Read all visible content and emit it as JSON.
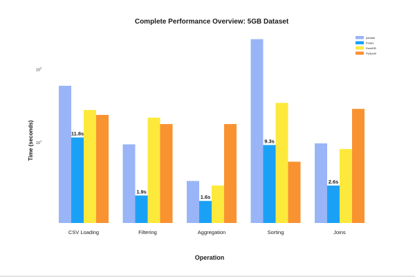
{
  "chart_data": {
    "type": "bar",
    "title": "Complete Performance Overview: 5GB Dataset",
    "xlabel": "Operation",
    "ylabel": "Time (seconds)",
    "yscale": "log",
    "ylim": [
      0.8,
      300
    ],
    "yticks": [
      {
        "value": 10,
        "base": "10",
        "exp": "1"
      },
      {
        "value": 100,
        "base": "10",
        "exp": "2"
      }
    ],
    "categories": [
      "CSV Loading",
      "Filtering",
      "Aggregation",
      "Sorting",
      "Joins"
    ],
    "series": [
      {
        "name": "pandas",
        "color": "#99b5f7",
        "values": [
          60,
          9.5,
          3.0,
          260,
          9.8
        ]
      },
      {
        "name": "Polars",
        "color": "#1aa1f6",
        "values": [
          11.8,
          1.9,
          1.6,
          9.3,
          2.6
        ]
      },
      {
        "name": "DuckDB",
        "color": "#fde93b",
        "values": [
          28,
          22,
          2.6,
          35,
          8.2
        ]
      },
      {
        "name": "PySpark",
        "color": "#f99230",
        "values": [
          24,
          18,
          18,
          5.5,
          29
        ]
      }
    ],
    "data_labels": [
      {
        "category": "CSV Loading",
        "series": "Polars",
        "text": "11.8s"
      },
      {
        "category": "Filtering",
        "series": "Polars",
        "text": "1.9s"
      },
      {
        "category": "Aggregation",
        "series": "Polars",
        "text": "1.6s"
      },
      {
        "category": "Sorting",
        "series": "Polars",
        "text": "9.3s"
      },
      {
        "category": "Joins",
        "series": "Polars",
        "text": "2.6s"
      }
    ],
    "legend": "top-right",
    "grid": false
  }
}
